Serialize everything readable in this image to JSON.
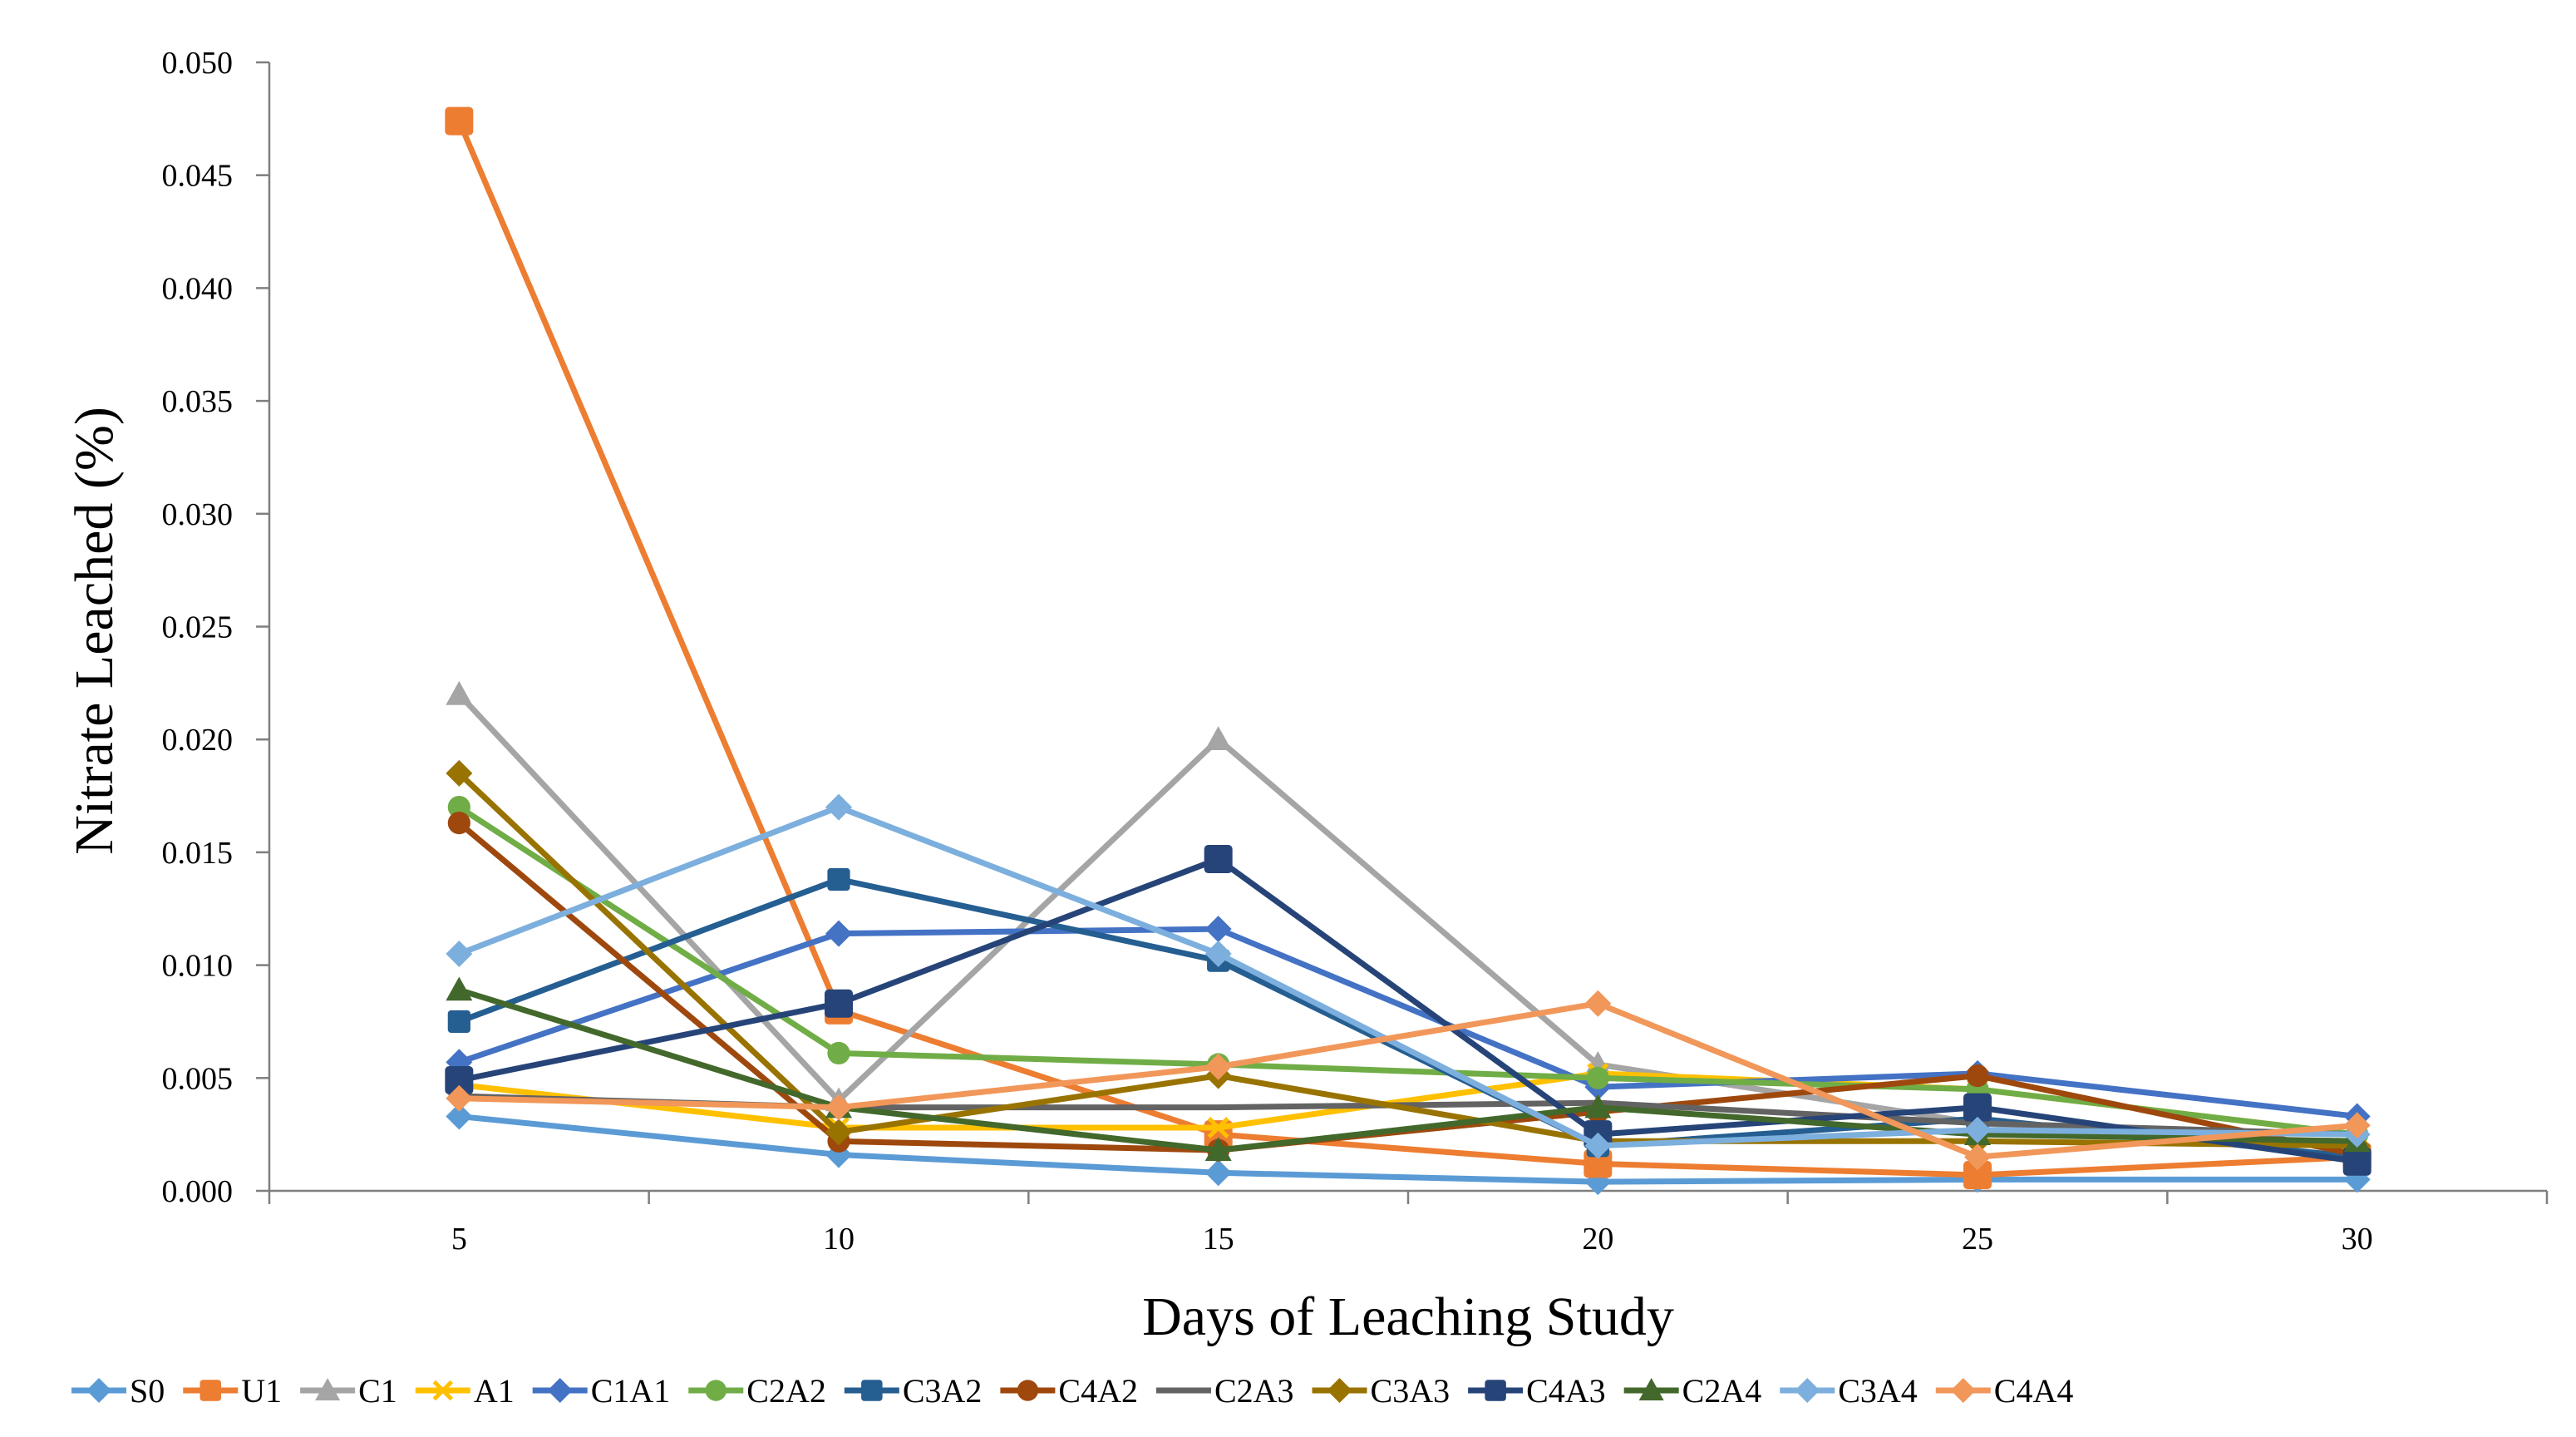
{
  "chart_data": {
    "type": "line",
    "title": "",
    "xlabel": "Days of Leaching Study",
    "ylabel": "Nitrate Leached (%)",
    "x": [
      5,
      10,
      15,
      20,
      25,
      30
    ],
    "x_tick_labels": [
      "5",
      "10",
      "15",
      "20",
      "25",
      "30"
    ],
    "ylim": [
      0,
      0.05
    ],
    "y_tick_labels": [
      "0.000",
      "0.005",
      "0.010",
      "0.015",
      "0.020",
      "0.025",
      "0.030",
      "0.035",
      "0.040",
      "0.045",
      "0.050"
    ],
    "grid": false,
    "legend_position": "bottom",
    "series": [
      {
        "name": "S0",
        "color": "#5B9BD5",
        "marker": "diamond",
        "values": [
          0.0033,
          0.0016,
          0.0008,
          0.0004,
          0.0005,
          0.0005
        ]
      },
      {
        "name": "U1",
        "color": "#ED7D31",
        "marker": "square",
        "values": [
          0.0474,
          0.008,
          0.0025,
          0.0012,
          0.0007,
          0.0015
        ]
      },
      {
        "name": "C1",
        "color": "#A5A5A5",
        "marker": "triangle",
        "values": [
          0.022,
          0.004,
          0.02,
          0.0056,
          0.003,
          0.002
        ]
      },
      {
        "name": "A1",
        "color": "#FFC000",
        "marker": "x",
        "values": [
          0.0047,
          0.0028,
          0.0028,
          0.0052,
          0.0045,
          0.0025
        ]
      },
      {
        "name": "C1A1",
        "color": "#4472C4",
        "marker": "diamond",
        "values": [
          0.0057,
          0.0114,
          0.0116,
          0.0046,
          0.0052,
          0.0033
        ]
      },
      {
        "name": "C2A2",
        "color": "#70AD47",
        "marker": "circle",
        "values": [
          0.017,
          0.0061,
          0.0056,
          0.005,
          0.0045,
          0.0025
        ]
      },
      {
        "name": "C3A2",
        "color": "#255E91",
        "marker": "square",
        "values": [
          0.0075,
          0.0138,
          0.0102,
          0.002,
          0.0032,
          0.0015
        ]
      },
      {
        "name": "C4A2",
        "color": "#9E480E",
        "marker": "circle",
        "values": [
          0.0163,
          0.0022,
          0.0018,
          0.0035,
          0.0051,
          0.0016
        ]
      },
      {
        "name": "C2A3",
        "color": "#636363",
        "marker": "dash",
        "values": [
          0.0042,
          0.0037,
          0.0037,
          0.0039,
          0.003,
          0.0025
        ]
      },
      {
        "name": "C3A3",
        "color": "#997300",
        "marker": "diamond",
        "values": [
          0.0185,
          0.0026,
          0.0051,
          0.0022,
          0.0022,
          0.002
        ]
      },
      {
        "name": "C4A3",
        "color": "#264478",
        "marker": "square",
        "values": [
          0.0049,
          0.0083,
          0.0147,
          0.0025,
          0.0037,
          0.0013
        ]
      },
      {
        "name": "C2A4",
        "color": "#43682B",
        "marker": "triangle",
        "values": [
          0.0089,
          0.0037,
          0.0018,
          0.0037,
          0.0025,
          0.0022
        ]
      },
      {
        "name": "C3A4",
        "color": "#7CAFDD",
        "marker": "diamond",
        "values": [
          0.0105,
          0.017,
          0.0105,
          0.002,
          0.0027,
          0.0025
        ]
      },
      {
        "name": "C4A4",
        "color": "#F1975A",
        "marker": "diamond",
        "values": [
          0.0041,
          0.0037,
          0.0055,
          0.0083,
          0.0015,
          0.0029
        ]
      }
    ]
  }
}
